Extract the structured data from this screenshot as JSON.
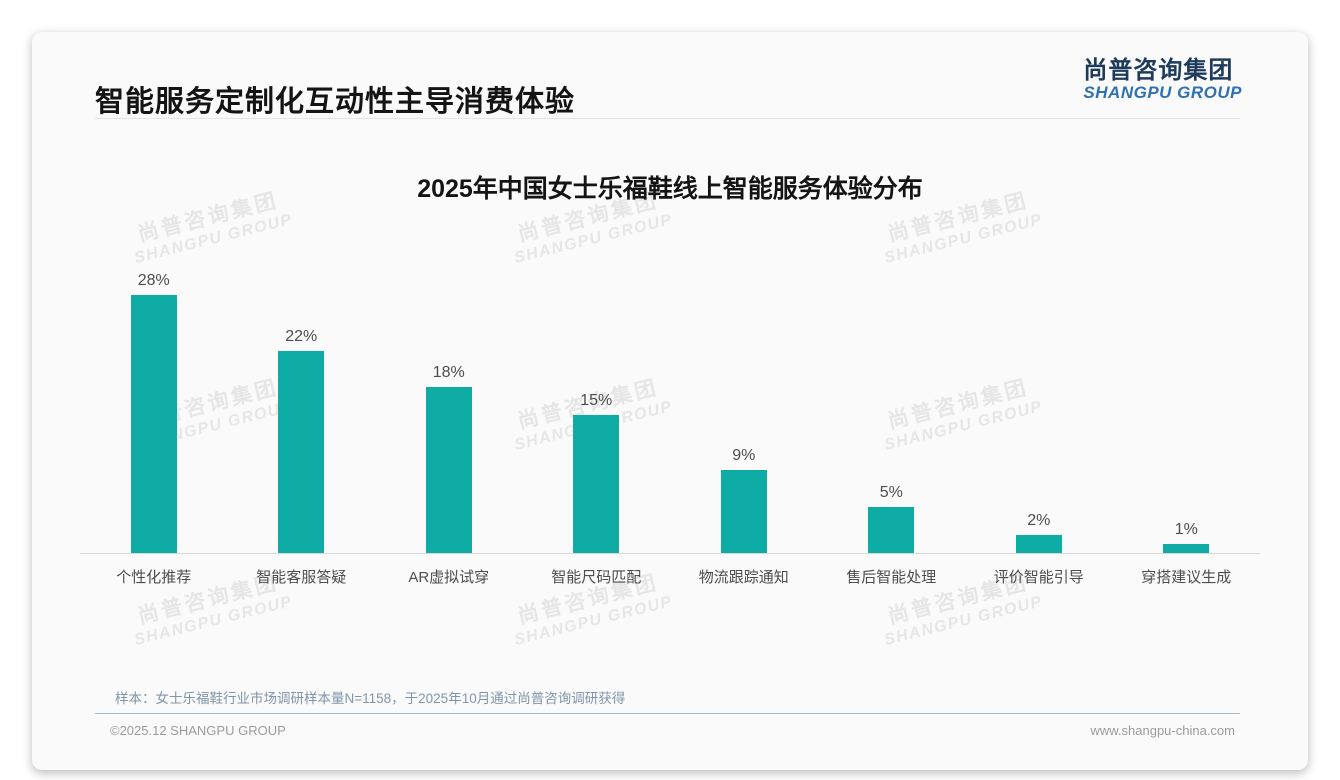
{
  "header": {
    "title": "智能服务定制化互动性主导消费体验",
    "logo_cn": "尚普咨询集团",
    "logo_en": "SHANGPU GROUP"
  },
  "chart_data": {
    "type": "bar",
    "title": "2025年中国女士乐福鞋线上智能服务体验分布",
    "categories": [
      "个性化推荐",
      "智能客服答疑",
      "AR虚拟试穿",
      "智能尺码匹配",
      "物流跟踪通知",
      "售后智能处理",
      "评价智能引导",
      "穿搭建议生成"
    ],
    "values": [
      28,
      22,
      18,
      15,
      9,
      5,
      2,
      1
    ],
    "value_labels": [
      "28%",
      "22%",
      "18%",
      "15%",
      "9%",
      "5%",
      "2%",
      "1%"
    ],
    "unit": "%",
    "bar_color": "#0EACA5",
    "ylim": [
      0,
      30
    ],
    "grid": false,
    "legend_position": "none",
    "xlabel": "",
    "ylabel": ""
  },
  "watermark": {
    "line1": "尚普咨询集团",
    "line2": "SHANGPU GROUP"
  },
  "footer": {
    "sample_note": "样本：女士乐福鞋行业市场调研样本量N=1158，于2025年10月通过尚普咨询调研获得",
    "copyright": "©2025.12 SHANGPU GROUP",
    "website": "www.shangpu-china.com"
  },
  "colors": {
    "bar": "#0EACA5",
    "logo_cn_color": "#1F3B5C",
    "logo_en_color": "#2E71B0",
    "note_color": "#8095AB"
  }
}
